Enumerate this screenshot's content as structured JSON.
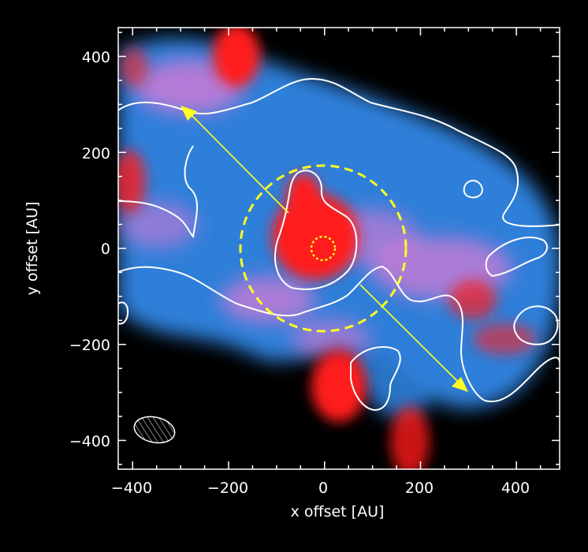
{
  "figure": {
    "xlabel": "x offset [AU]",
    "ylabel": "y offset [AU]",
    "xlim": [
      -430,
      490
    ],
    "ylim": [
      -460,
      460
    ],
    "xticks": [
      -400,
      -200,
      0,
      200,
      400
    ],
    "yticks": [
      -400,
      -200,
      0,
      200,
      400
    ],
    "xtick_labels": [
      "−400",
      "−200",
      "0",
      "200",
      "400"
    ],
    "ytick_labels": [
      "−400",
      "−200",
      "0",
      "200",
      "400"
    ],
    "background": "#000000",
    "frame_color": "#ffffff",
    "colors": {
      "blue_emission": "#2f7fd9",
      "red_emission": "#ff1a1a",
      "overlap_magenta": "#e07ad6",
      "contour": "#ffffff",
      "annotation": "#ffff22"
    },
    "annotations": {
      "outer_circle_radius_au": 175,
      "inner_circle_radius_au": 25,
      "outflow_arrows": [
        {
          "from": [
            -75,
            75
          ],
          "to": [
            -295,
            295
          ]
        },
        {
          "from": [
            75,
            -75
          ],
          "to": [
            300,
            -300
          ]
        }
      ],
      "beam": {
        "center": [
          -350,
          -380
        ],
        "major_au": 85,
        "minor_au": 48,
        "angle_deg": 12
      }
    }
  }
}
